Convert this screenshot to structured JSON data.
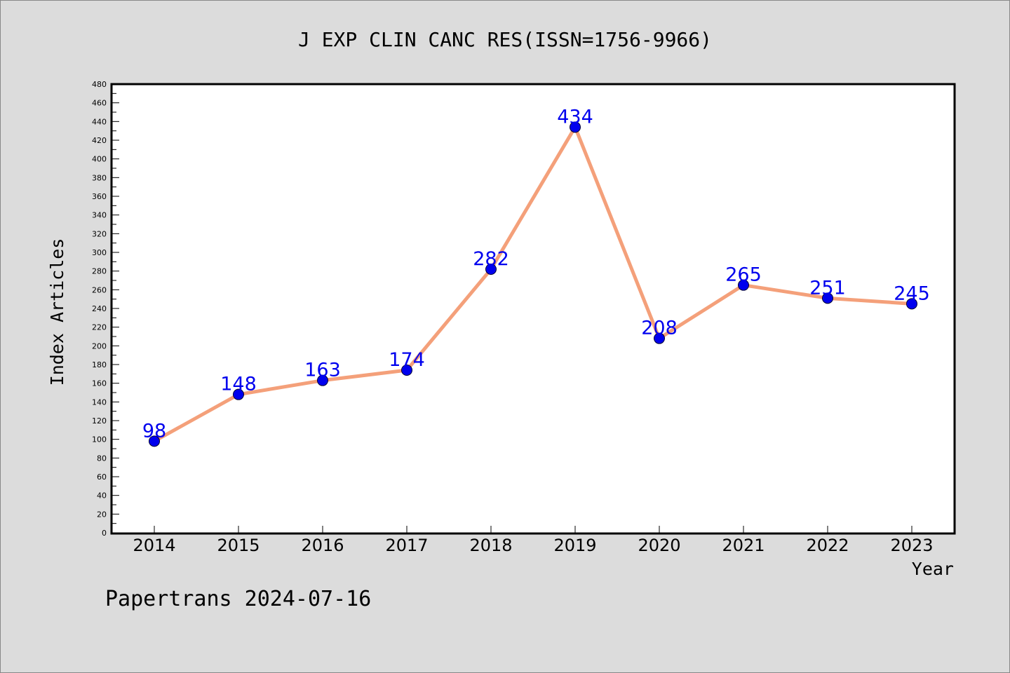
{
  "chart_data": {
    "type": "line",
    "title": "J EXP CLIN CANC RES(ISSN=1756-9966)",
    "xlabel": "Year",
    "ylabel": "Index Articles",
    "categories": [
      "2014",
      "2015",
      "2016",
      "2017",
      "2018",
      "2019",
      "2020",
      "2021",
      "2022",
      "2023"
    ],
    "series": [
      {
        "values": [
          98,
          148,
          163,
          174,
          282,
          434,
          208,
          265,
          251,
          245
        ]
      }
    ],
    "ylim": [
      0,
      480
    ],
    "ytick_step": 20,
    "grid": false,
    "data_labels": true,
    "line_color": "#f4a07a",
    "marker_color": "#0000ee",
    "label_color": "#0000ee"
  },
  "footer": {
    "text": "Papertrans 2024-07-16"
  }
}
